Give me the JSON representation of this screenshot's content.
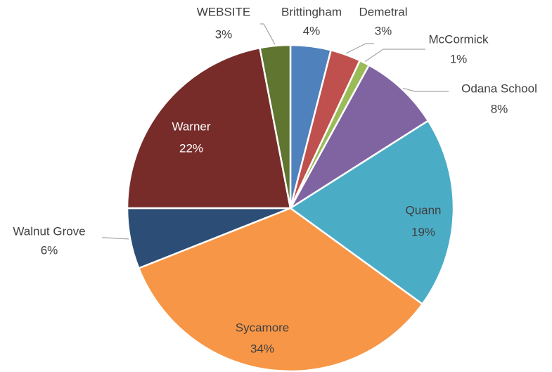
{
  "chart_data": {
    "type": "pie",
    "categories": [
      "Brittingham",
      "Demetral",
      "McCormick",
      "Odana School",
      "Quann",
      "Sycamore",
      "Walnut Grove",
      "Warner",
      "WEBSITE"
    ],
    "values": [
      4,
      3,
      1,
      8,
      19,
      34,
      6,
      22,
      3
    ],
    "value_labels": [
      "4%",
      "3%",
      "1%",
      "8%",
      "19%",
      "34%",
      "6%",
      "22%",
      "3%"
    ],
    "colors": [
      "#4f81bd",
      "#c0504d",
      "#9bbb59",
      "#8064a2",
      "#4bacc6",
      "#f79646",
      "#2c4d75",
      "#772c2a",
      "#5f7530"
    ]
  }
}
